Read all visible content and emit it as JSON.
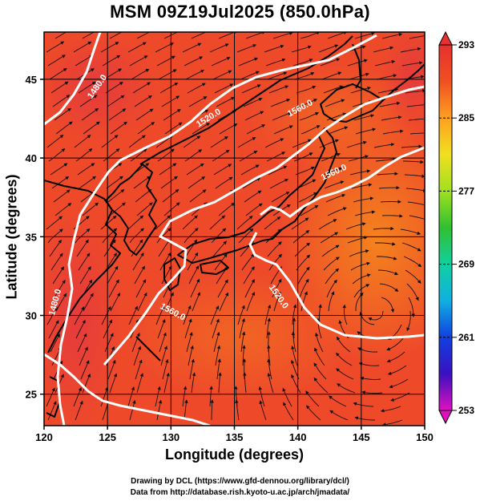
{
  "title": "MSM 09Z19Jul2025 (850.0hPa)",
  "x_axis": {
    "label": "Longitude (degrees)",
    "range": [
      120,
      150
    ],
    "ticks": [
      "120",
      "125",
      "130",
      "135",
      "140",
      "145",
      "150"
    ]
  },
  "y_axis": {
    "label": "Latitude  (degrees)",
    "range": [
      23,
      48
    ],
    "ticks": [
      "25",
      "30",
      "35",
      "40",
      "45"
    ]
  },
  "colorbar": {
    "range": [
      253,
      293
    ],
    "ticks": [
      "293",
      "285",
      "277",
      "269",
      "261",
      "253"
    ],
    "colors": [
      "#e010c0",
      "#3a10c0",
      "#1040e0",
      "#10b0e0",
      "#10d0a0",
      "#30c030",
      "#a0e020",
      "#f0e020",
      "#ffa020",
      "#f05020",
      "#e83030"
    ]
  },
  "contours": {
    "labels": [
      "1480.0",
      "1520.0",
      "1560.0",
      "1560.0",
      "1520.0",
      "1560.0",
      "1480.0"
    ],
    "color": "#ffffff"
  },
  "field_colors": {
    "base": "#ee4a2a",
    "warm": "#f26a22",
    "hot": "#f5891c",
    "cool": "#e83838"
  },
  "credits": {
    "line1": "Drawing by DCL (https://www.gfd-dennou.org/library/dcl/)",
    "line2": "Data from http://database.rish.kyoto-u.ac.jp/arch/jmadata/"
  }
}
